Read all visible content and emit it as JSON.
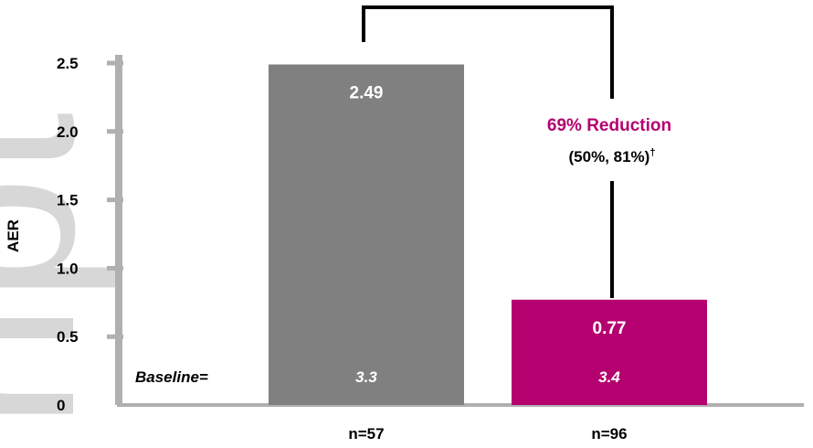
{
  "chart_data": {
    "type": "bar",
    "ylabel": "AER",
    "ylim": [
      0,
      2.5
    ],
    "yticks": [
      0,
      0.5,
      1.0,
      1.5,
      2.0,
      2.5
    ],
    "ytick_labels": [
      "0",
      "0.5",
      "1.0",
      "1.5",
      "2.0",
      "2.5"
    ],
    "categories": [
      "n=57",
      "n=96"
    ],
    "values": [
      2.49,
      0.77
    ],
    "value_labels": [
      "2.49",
      "0.77"
    ],
    "bar_colors": [
      "#808080",
      "#b5006f"
    ],
    "baseline_label": "Baseline=",
    "baseline_values": [
      "3.3",
      "3.4"
    ],
    "annotation": {
      "title": "69% Reduction",
      "ci": "(50%, 81%)",
      "ci_mark": "†",
      "color": "#b5006f"
    },
    "watermark_text": "ript"
  }
}
